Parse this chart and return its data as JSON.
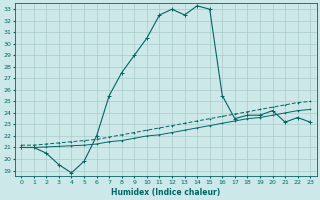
{
  "xlabel": "Humidex (Indice chaleur)",
  "bg_color": "#cce8e8",
  "grid_color": "#aacccc",
  "line_color": "#006666",
  "xlim": [
    -0.5,
    23.5
  ],
  "ylim": [
    18.5,
    33.5
  ],
  "xticks": [
    0,
    1,
    2,
    3,
    4,
    5,
    6,
    7,
    8,
    9,
    10,
    11,
    12,
    13,
    14,
    15,
    16,
    17,
    18,
    19,
    20,
    21,
    22,
    23
  ],
  "yticks": [
    19,
    20,
    21,
    22,
    23,
    24,
    25,
    26,
    27,
    28,
    29,
    30,
    31,
    32,
    33
  ],
  "curve1_x": [
    0,
    1,
    2,
    3,
    4,
    5,
    6,
    7,
    8,
    9,
    10,
    11,
    12,
    13,
    14,
    15,
    16,
    17,
    18,
    19,
    20,
    21,
    22,
    23
  ],
  "curve1_y": [
    21.0,
    21.0,
    20.5,
    19.5,
    18.8,
    19.8,
    22.0,
    25.5,
    27.5,
    29.0,
    30.5,
    32.5,
    33.0,
    32.5,
    33.3,
    33.0,
    25.5,
    23.5,
    23.8,
    23.8,
    24.2,
    23.2,
    23.6,
    23.2
  ],
  "curve2_x": [
    0,
    1,
    2,
    3,
    4,
    5,
    6,
    7,
    8,
    9,
    10,
    11,
    12,
    13,
    14,
    15,
    16,
    17,
    18,
    19,
    20,
    21,
    22,
    23
  ],
  "curve2_y": [
    21.2,
    21.2,
    21.3,
    21.4,
    21.5,
    21.6,
    21.7,
    21.9,
    22.1,
    22.3,
    22.5,
    22.7,
    22.9,
    23.1,
    23.3,
    23.5,
    23.7,
    23.9,
    24.1,
    24.3,
    24.5,
    24.7,
    24.9,
    25.0
  ],
  "curve3_x": [
    0,
    1,
    2,
    3,
    4,
    5,
    6,
    7,
    8,
    9,
    10,
    11,
    12,
    13,
    14,
    15,
    16,
    17,
    18,
    19,
    20,
    21,
    22,
    23
  ],
  "curve3_y": [
    21.0,
    21.0,
    21.05,
    21.1,
    21.15,
    21.2,
    21.3,
    21.5,
    21.6,
    21.8,
    22.0,
    22.1,
    22.3,
    22.5,
    22.7,
    22.9,
    23.1,
    23.3,
    23.5,
    23.6,
    23.8,
    24.0,
    24.2,
    24.3
  ]
}
